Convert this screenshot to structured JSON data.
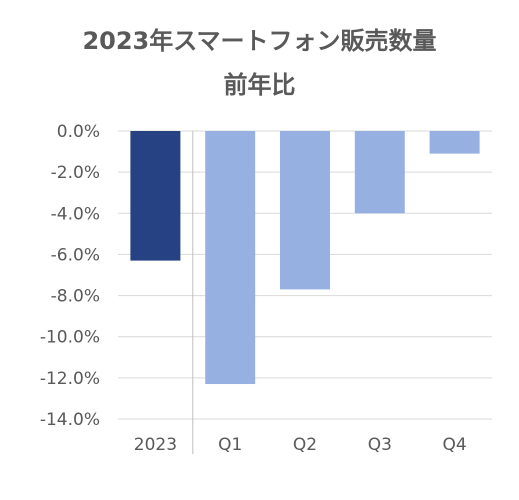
{
  "chart_data": {
    "type": "bar",
    "title": "2023年スマートフォン販売数量",
    "subtitle": "前年比",
    "categories": [
      "2023",
      "Q1",
      "Q2",
      "Q3",
      "Q4"
    ],
    "values": [
      -6.3,
      -12.3,
      -7.7,
      -4.0,
      -1.1
    ],
    "ylim": [
      -14.0,
      0.0
    ],
    "yticks": [
      0.0,
      -2.0,
      -4.0,
      -6.0,
      -8.0,
      -10.0,
      -12.0,
      -14.0
    ],
    "ytick_labels": [
      "0.0%",
      "-2.0%",
      "-4.0%",
      "-6.0%",
      "-8.0%",
      "-10.0%",
      "-12.0%",
      "-14.0%"
    ],
    "bar_colors": [
      "#264282",
      "#97b0e2",
      "#97b0e2",
      "#97b0e2",
      "#97b0e2"
    ],
    "grid": true,
    "xlabel": "",
    "ylabel": ""
  }
}
